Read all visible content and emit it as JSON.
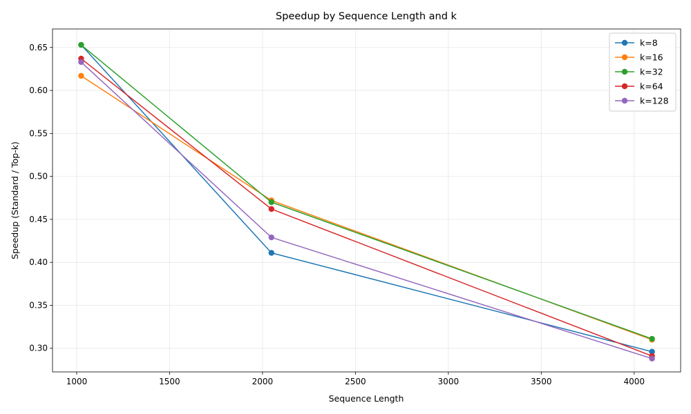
{
  "chart_data": {
    "type": "line",
    "title": "Speedup by Sequence Length and k",
    "xlabel": "Sequence Length",
    "ylabel": "Speedup (Standard / Top-k)",
    "x": [
      1024,
      2048,
      4096
    ],
    "xlim": [
      870,
      4250
    ],
    "ylim": [
      0.2725,
      0.6715
    ],
    "xticks": [
      1000,
      1500,
      2000,
      2500,
      3000,
      3500,
      4000
    ],
    "yticks": [
      0.3,
      0.35,
      0.4,
      0.45,
      0.5,
      0.55,
      0.6,
      0.65
    ],
    "ytick_labels": [
      "0.30",
      "0.35",
      "0.40",
      "0.45",
      "0.50",
      "0.55",
      "0.60",
      "0.65"
    ],
    "grid": true,
    "legend_position": "top-right",
    "series": [
      {
        "name": "k=8",
        "color": "#1f77b4",
        "values": [
          0.653,
          0.411,
          0.296
        ]
      },
      {
        "name": "k=16",
        "color": "#ff7f0e",
        "values": [
          0.617,
          0.472,
          0.31
        ]
      },
      {
        "name": "k=32",
        "color": "#2ca02c",
        "values": [
          0.653,
          0.47,
          0.311
        ]
      },
      {
        "name": "k=64",
        "color": "#d62728",
        "values": [
          0.637,
          0.462,
          0.291
        ]
      },
      {
        "name": "k=128",
        "color": "#9467bd",
        "values": [
          0.633,
          0.429,
          0.288
        ]
      }
    ]
  }
}
